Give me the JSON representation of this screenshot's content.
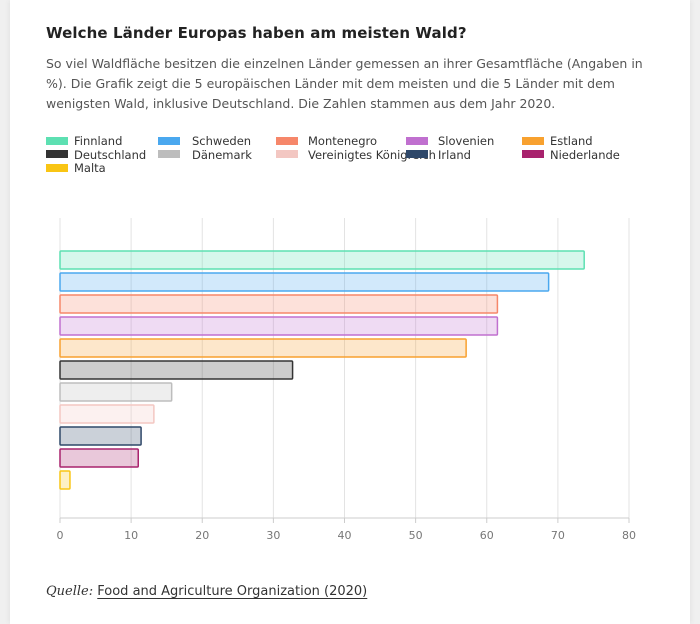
{
  "title": "Welche Länder Europas haben am meisten Wald?",
  "subtitle": "So viel Waldfläche besitzen die einzelnen Länder gemessen an ihrer Gesamtfläche (Angaben in %). Die Grafik zeigt die 5 europäischen Länder mit dem meisten und die 5 Länder mit dem wenigsten Wald, inklusive Deutschland. Die Zahlen stammen aus dem Jahr 2020.",
  "source": {
    "label": "Quelle:",
    "link_text": "Food and Agriculture Organization (2020)"
  },
  "chart_data": {
    "type": "bar",
    "orientation": "horizontal",
    "title": "",
    "xlabel": "",
    "ylabel": "",
    "xlim": [
      0,
      80
    ],
    "xticks": [
      0,
      10,
      20,
      30,
      40,
      50,
      60,
      70,
      80
    ],
    "grid": true,
    "legend_position": "top",
    "series": [
      {
        "name": "Finnland",
        "value": 73.7,
        "color": "#5de0b2"
      },
      {
        "name": "Schweden",
        "value": 68.7,
        "color": "#4aa8ef"
      },
      {
        "name": "Montenegro",
        "value": 61.5,
        "color": "#f6876a"
      },
      {
        "name": "Slovenien",
        "value": 61.5,
        "color": "#c070cf"
      },
      {
        "name": "Estland",
        "value": 57.1,
        "color": "#f8a12f"
      },
      {
        "name": "Deutschland",
        "value": 32.7,
        "color": "#333333"
      },
      {
        "name": "Dänemark",
        "value": 15.7,
        "color": "#bdbdbd"
      },
      {
        "name": "Vereinigtes Königreich",
        "value": 13.2,
        "color": "#f3c7c2"
      },
      {
        "name": "Irland",
        "value": 11.4,
        "color": "#2f4869"
      },
      {
        "name": "Niederlande",
        "value": 11.0,
        "color": "#a8226d"
      },
      {
        "name": "Malta",
        "value": 1.4,
        "color": "#f9c514"
      }
    ]
  }
}
